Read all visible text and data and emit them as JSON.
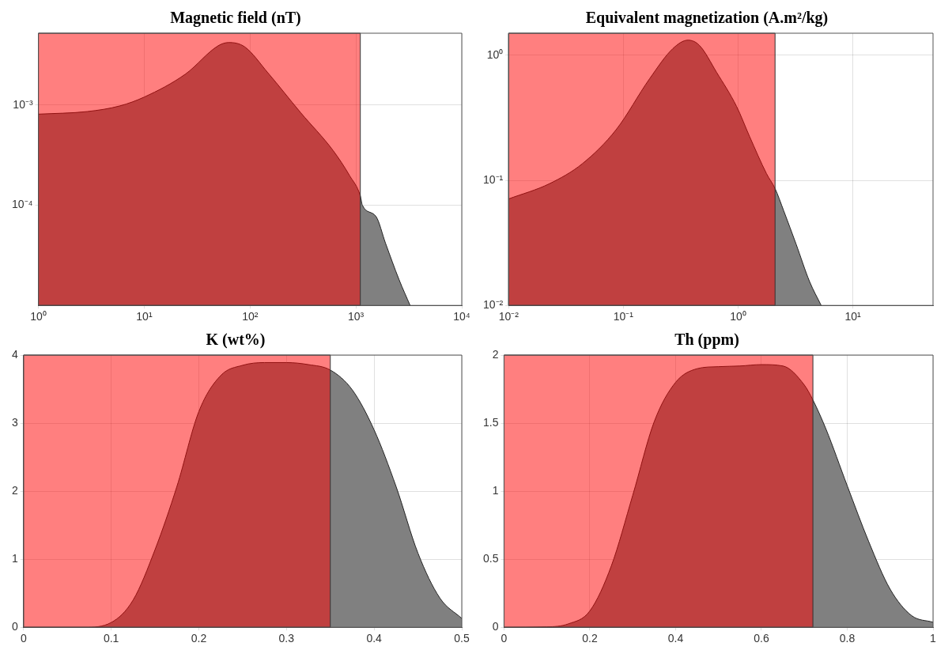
{
  "chart_data": [
    {
      "type": "area",
      "title": "Magnetic field (nT)",
      "color": "#808080",
      "log": "xy",
      "grid": true,
      "x": [
        1,
        2.9,
        5.9,
        10,
        24.6,
        50,
        63,
        89,
        147,
        300,
        610,
        875,
        1100,
        1150,
        1550,
        1900,
        2560,
        3250
      ],
      "values": [
        0.00081,
        0.00086,
        0.00098,
        0.0012,
        0.00204,
        0.0039,
        0.0042,
        0.0038,
        0.0021,
        0.00084,
        0.00035,
        0.000196,
        0.000124,
        0.0001,
        7.7e-05,
        4.2e-05,
        1.8e-05,
        1e-05
      ],
      "xlim": [
        1,
        10000
      ],
      "ylim": [
        1e-05,
        0.0052
      ],
      "xticks": [
        {
          "value": 1,
          "label": "10⁰"
        },
        {
          "value": 10,
          "label": "10¹"
        },
        {
          "value": 100,
          "label": "10²"
        },
        {
          "value": 1000,
          "label": "10³"
        },
        {
          "value": 10000,
          "label": "10⁴"
        }
      ],
      "yticks": [
        {
          "value": 0.0001,
          "label": "10⁻⁴"
        },
        {
          "value": 0.001,
          "label": "10⁻³"
        }
      ],
      "bands": [
        {
          "axis": "x",
          "from": 1,
          "to": 1100,
          "color": "#ff0000"
        }
      ]
    },
    {
      "type": "area",
      "title": "Equivalent magnetization (A.m²/kg)",
      "color": "#808080",
      "log": "xy",
      "grid": true,
      "x": [
        0.01,
        0.0227,
        0.044,
        0.0865,
        0.169,
        0.27,
        0.366,
        0.46,
        0.65,
        0.97,
        1.26,
        1.77,
        2.1,
        2.5,
        3.2,
        4.2,
        5.3
      ],
      "values": [
        0.071,
        0.094,
        0.136,
        0.254,
        0.647,
        1.13,
        1.32,
        1.2,
        0.73,
        0.39,
        0.224,
        0.113,
        0.086,
        0.057,
        0.031,
        0.0155,
        0.01
      ],
      "xlim": [
        0.01,
        50
      ],
      "ylim": [
        0.01,
        1.5
      ],
      "xticks": [
        {
          "value": 0.01,
          "label": "10⁻²"
        },
        {
          "value": 0.1,
          "label": "10⁻¹"
        },
        {
          "value": 1,
          "label": "10⁰"
        },
        {
          "value": 10,
          "label": "10¹"
        }
      ],
      "yticks": [
        {
          "value": 0.01,
          "label": "10⁻²"
        },
        {
          "value": 0.1,
          "label": "10⁻¹"
        },
        {
          "value": 1,
          "label": "10⁰"
        }
      ],
      "bands": [
        {
          "axis": "x",
          "from": 0.01,
          "to": 2.1,
          "color": "#ff0000"
        }
      ]
    },
    {
      "type": "area",
      "title": "K (wt%)",
      "color": "#808080",
      "grid": true,
      "x": [
        0,
        0.07,
        0.1,
        0.125,
        0.15,
        0.175,
        0.2,
        0.225,
        0.25,
        0.275,
        0.3,
        0.325,
        0.35,
        0.375,
        0.4,
        0.425,
        0.45,
        0.475,
        0.5
      ],
      "values": [
        0,
        0,
        0.07,
        0.4,
        1.14,
        2.07,
        3.17,
        3.7,
        3.85,
        3.89,
        3.89,
        3.86,
        3.78,
        3.49,
        2.9,
        2.07,
        1.09,
        0.43,
        0.13
      ],
      "xlim": [
        0,
        0.5
      ],
      "ylim": [
        0,
        4
      ],
      "xticks": [
        0,
        0.1,
        0.2,
        0.3,
        0.4,
        0.5
      ],
      "yticks": [
        0,
        1,
        2,
        3,
        4
      ],
      "bands": [
        {
          "axis": "x",
          "from": 0,
          "to": 0.35,
          "color": "#ff0000"
        }
      ]
    },
    {
      "type": "area",
      "title": "Th (ppm)",
      "color": "#808080",
      "grid": true,
      "x": [
        0,
        0.1,
        0.15,
        0.2,
        0.25,
        0.3,
        0.35,
        0.4,
        0.45,
        0.5,
        0.55,
        0.6,
        0.65,
        0.7,
        0.72,
        0.75,
        0.8,
        0.85,
        0.9,
        0.95,
        1
      ],
      "values": [
        0,
        0.003,
        0.025,
        0.12,
        0.45,
        0.97,
        1.51,
        1.8,
        1.9,
        1.915,
        1.92,
        1.93,
        1.92,
        1.78,
        1.67,
        1.46,
        1.04,
        0.63,
        0.28,
        0.086,
        0.037
      ],
      "xlim": [
        0,
        1
      ],
      "ylim": [
        0,
        2
      ],
      "xticks": [
        0,
        0.2,
        0.4,
        0.6,
        0.8,
        1
      ],
      "yticks": [
        0,
        0.5,
        1,
        1.5,
        2
      ],
      "bands": [
        {
          "axis": "x",
          "from": 0,
          "to": 0.72,
          "color": "#ff0000"
        }
      ]
    }
  ]
}
